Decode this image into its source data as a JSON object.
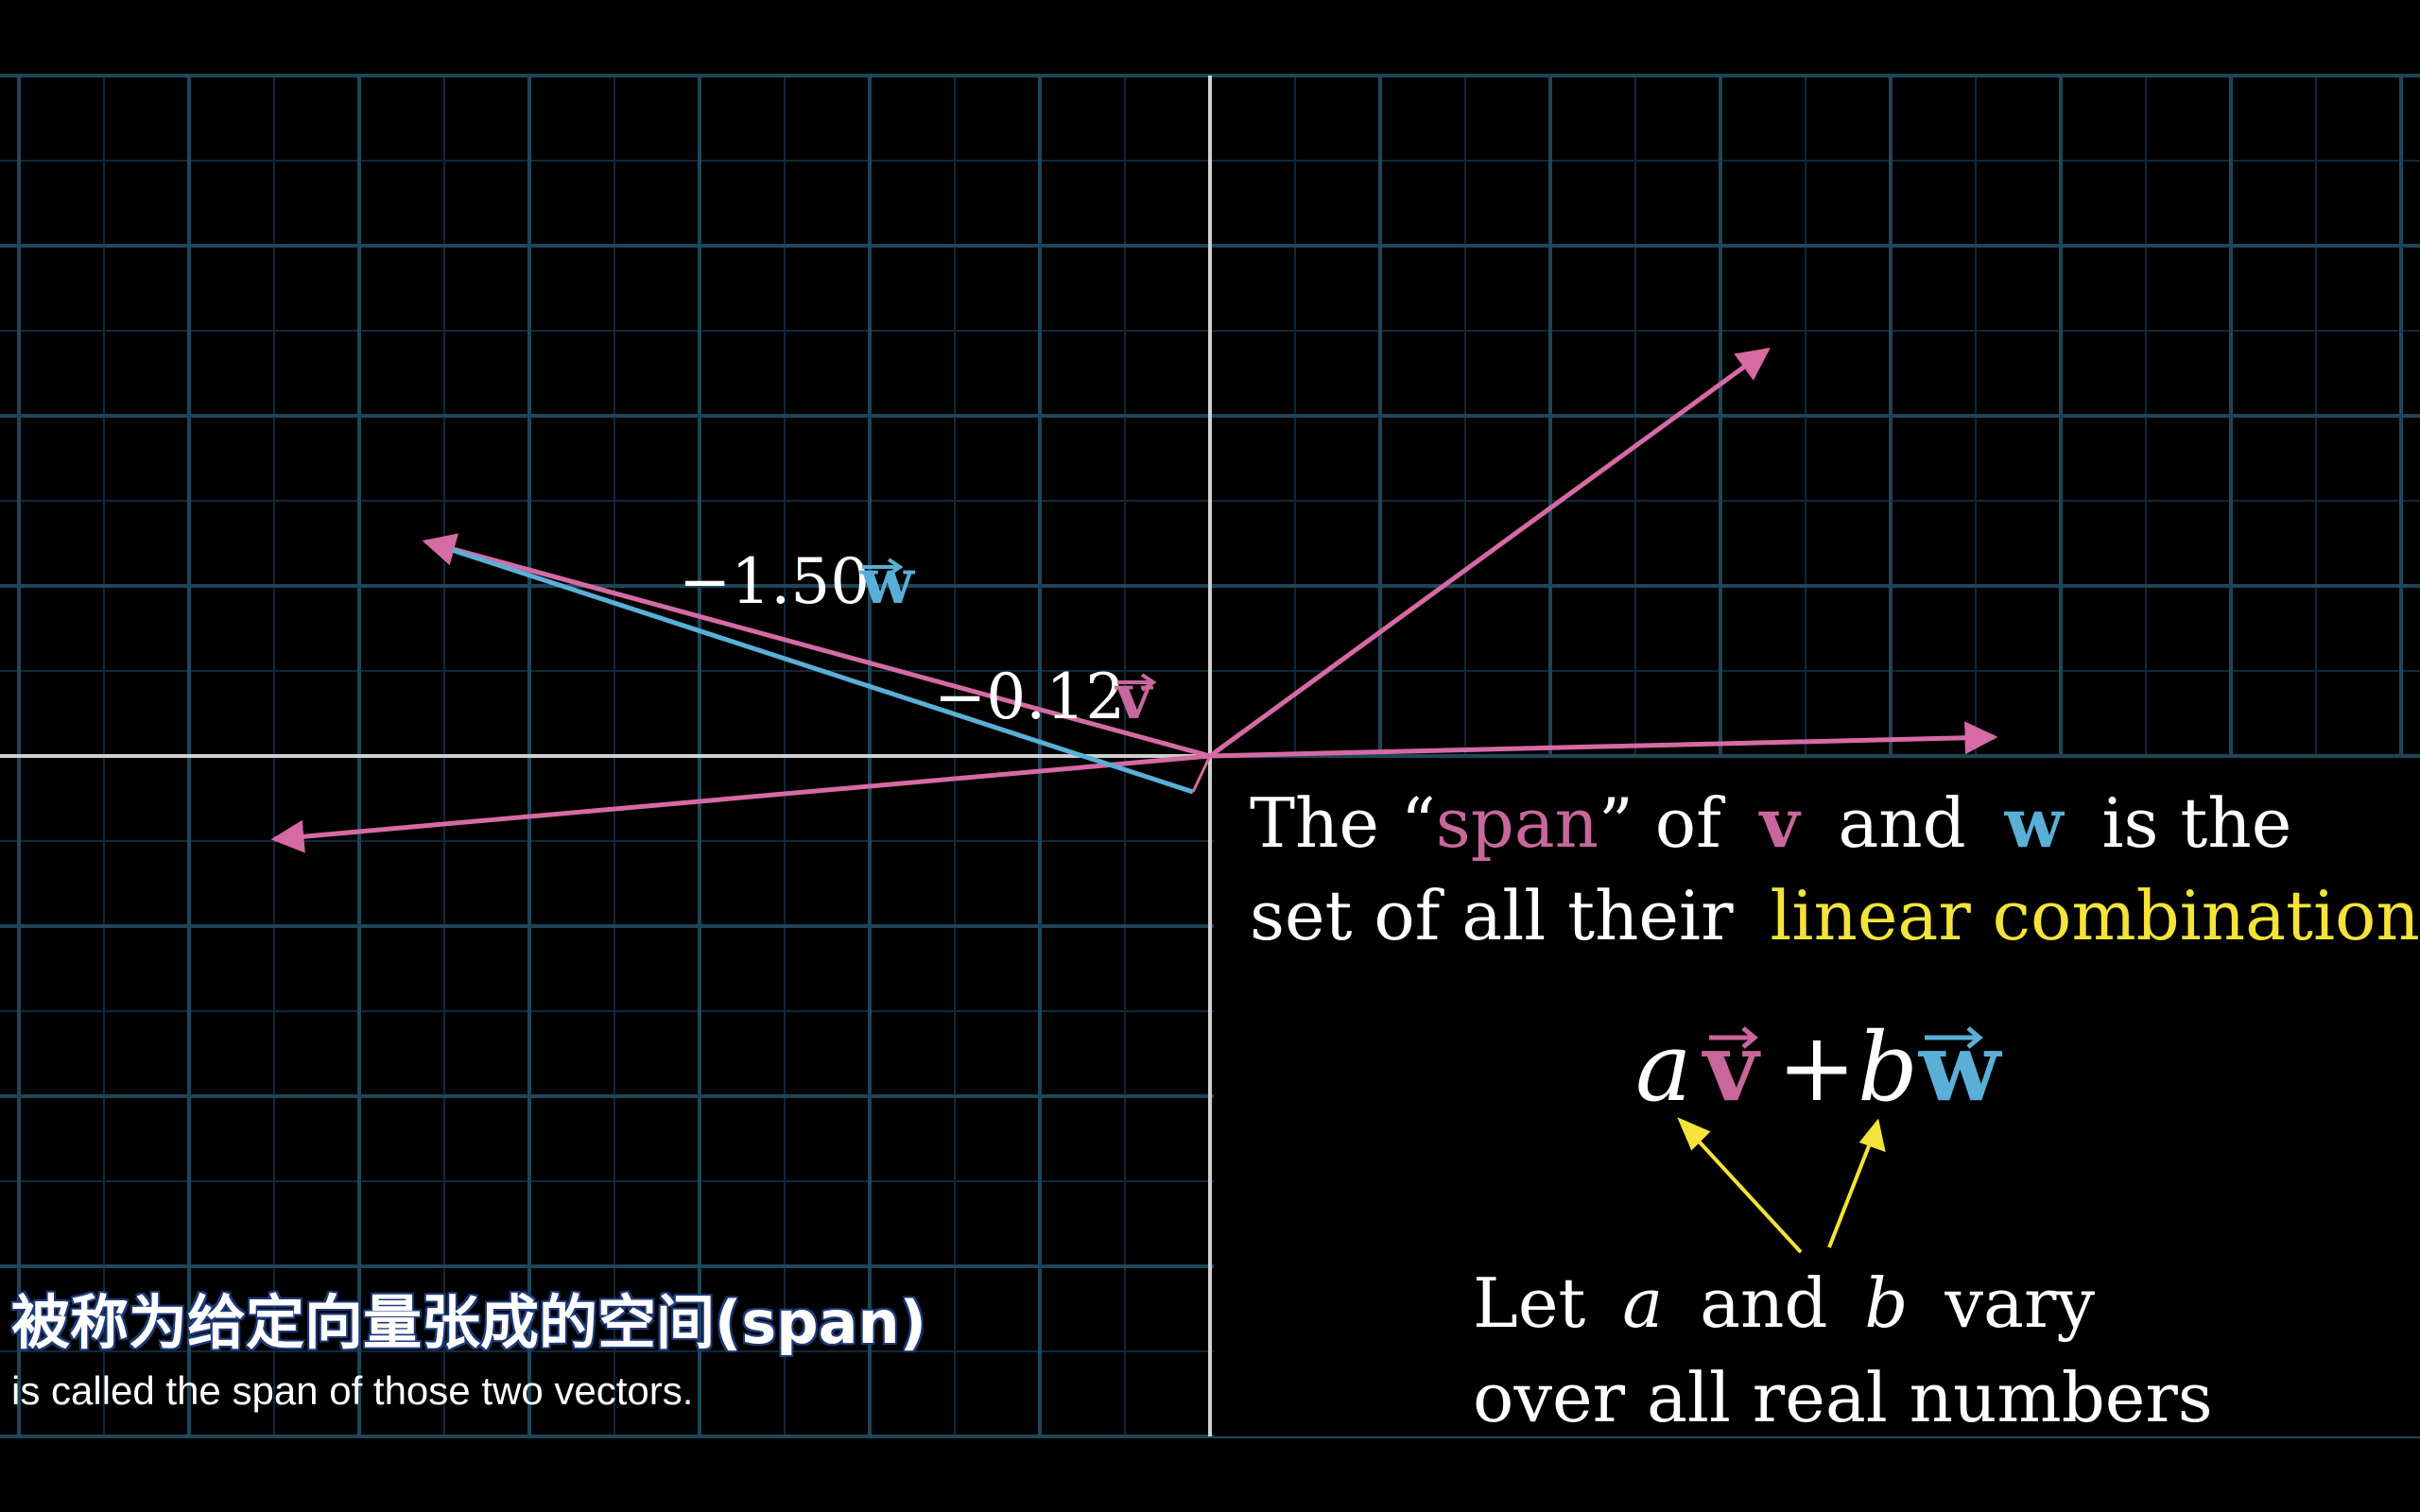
{
  "colors": {
    "background": "#000000",
    "grid": "#1d4658",
    "grid_minor": "#10283a",
    "axis": "#d8d8d8",
    "vector_v": "#d56aa4",
    "vector_w": "#5aafd6",
    "text": "#ffffff",
    "highlight": "#f3e33a",
    "pink_text": "#c8679b"
  },
  "labels": {
    "w_scaled": {
      "coef": "−1.50",
      "vec": "w"
    },
    "v_scaled": {
      "coef": "−0.12",
      "vec": "v"
    }
  },
  "explanation": {
    "line1": {
      "part1": "The “",
      "span": "span",
      "part2": "” of",
      "v": "v",
      "and": "and",
      "w": "w",
      "end": "is the"
    },
    "line2": {
      "part1": "set of all their",
      "lc": "linear combinations",
      "end": "."
    }
  },
  "formula": {
    "a": "a",
    "v": "v",
    "plus": "+",
    "b": "b",
    "w": "w"
  },
  "note": {
    "line1": {
      "let": "Let",
      "a": "a",
      "and": "and",
      "b": "b",
      "vary": "vary"
    },
    "line2": "over all real numbers"
  },
  "subtitle": {
    "zh": "被称为给定向量张成的空间(span)",
    "en": "is called the span of those two vectors."
  }
}
